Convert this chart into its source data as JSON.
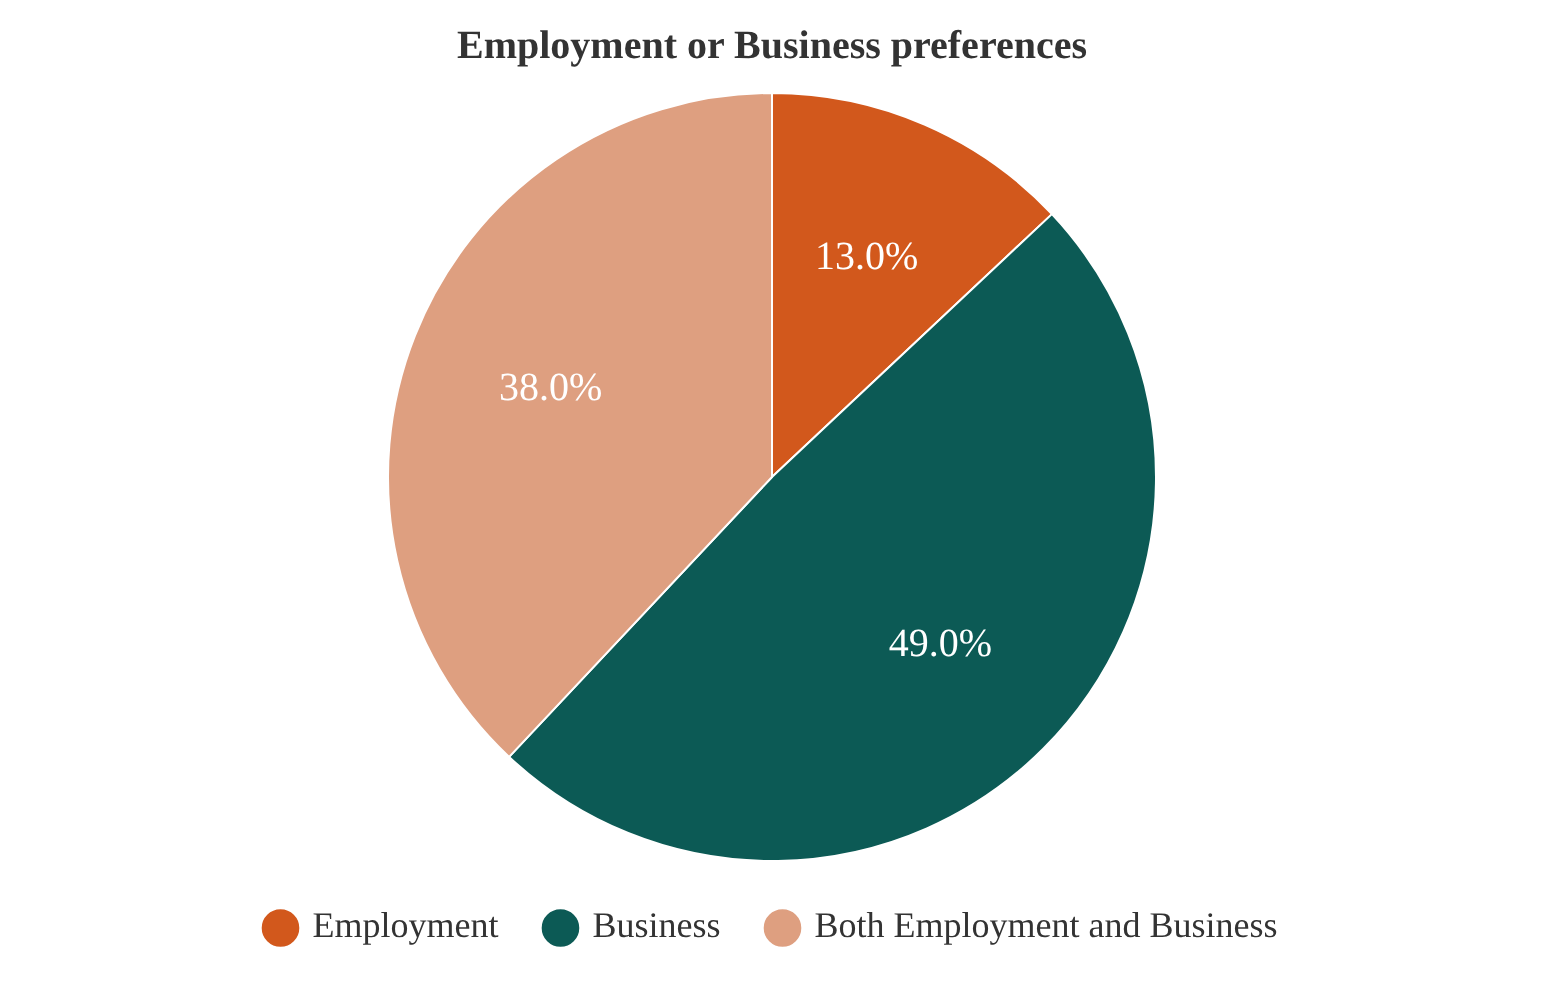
{
  "chart_data": {
    "type": "pie",
    "title": "Employment or Business preferences",
    "categories": [
      "Employment",
      "Business",
      "Both Employment and Business"
    ],
    "values": [
      13,
      49,
      38
    ],
    "colors": [
      "#d2581c",
      "#0c5a55",
      "#de9f80"
    ],
    "value_labels": [
      "13.0%",
      "49.0%",
      "38.0%"
    ],
    "legend": "bottom"
  }
}
